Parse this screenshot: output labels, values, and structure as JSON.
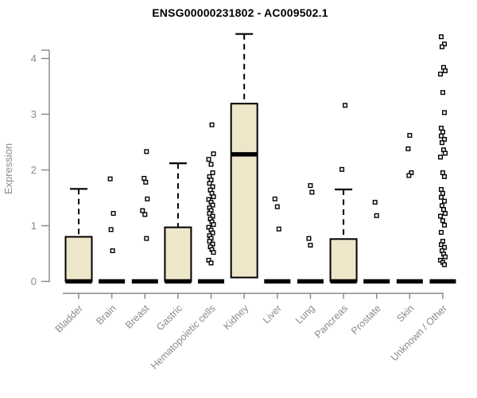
{
  "chart_data": {
    "type": "boxplot",
    "title": "ENSG00000231802 - AC009502.1",
    "ylabel": "Expression",
    "xlabel": "",
    "ylim": [
      0,
      4.45
    ],
    "yticks": [
      0,
      1,
      2,
      3,
      4
    ],
    "grid": false,
    "legend": "none",
    "categories": [
      "Bladder",
      "Brain",
      "Breast",
      "Gastric",
      "Hematopoietic cells",
      "Kidney",
      "Liver",
      "Lung",
      "Pancreas",
      "Prostate",
      "Skin",
      "Unknown / Other"
    ],
    "colors": {
      "box_fill": "#ede6c9",
      "box_border": "#000000",
      "median": "#000000",
      "point_fill": "#ffffff",
      "point_border": "#000000",
      "axis": "#878787",
      "text": "#8a8a8a",
      "title": "#000000"
    },
    "boxes": [
      {
        "category": "Bladder",
        "q1": 0,
        "median": 0,
        "q3": 0.8,
        "whisker_low": 0,
        "whisker_high": 1.66,
        "points": []
      },
      {
        "category": "Brain",
        "q1": 0,
        "median": 0,
        "q3": 0,
        "whisker_low": 0,
        "whisker_high": 0,
        "points": [
          1.84,
          1.22,
          0.93,
          0.55
        ]
      },
      {
        "category": "Breast",
        "q1": 0,
        "median": 0,
        "q3": 0,
        "whisker_low": 0,
        "whisker_high": 0,
        "points": [
          2.33,
          1.85,
          1.78,
          1.48,
          1.27,
          1.2,
          0.77
        ]
      },
      {
        "category": "Gastric",
        "q1": 0,
        "median": 0,
        "q3": 0.97,
        "whisker_low": 0,
        "whisker_high": 2.12,
        "points": []
      },
      {
        "category": "Hematopoietic cells",
        "q1": 0,
        "median": 0,
        "q3": 0,
        "whisker_low": 0,
        "whisker_high": 0,
        "points": [
          2.81,
          2.29,
          2.19,
          2.1,
          1.95,
          1.88,
          1.82,
          1.76,
          1.7,
          1.64,
          1.58,
          1.52,
          1.47,
          1.42,
          1.37,
          1.32,
          1.27,
          1.22,
          1.17,
          1.12,
          1.07,
          1.02,
          0.97,
          0.92,
          0.87,
          0.82,
          0.77,
          0.72,
          0.67,
          0.62,
          0.57,
          0.52,
          0.38,
          0.33
        ]
      },
      {
        "category": "Kidney",
        "q1": 0.07,
        "median": 2.28,
        "q3": 3.19,
        "whisker_low": 0,
        "whisker_high": 4.44,
        "points": []
      },
      {
        "category": "Liver",
        "q1": 0,
        "median": 0,
        "q3": 0,
        "whisker_low": 0,
        "whisker_high": 0,
        "points": [
          1.48,
          1.34,
          0.94
        ]
      },
      {
        "category": "Lung",
        "q1": 0,
        "median": 0,
        "q3": 0,
        "whisker_low": 0,
        "whisker_high": 0,
        "points": [
          1.72,
          1.6,
          0.77,
          0.65
        ]
      },
      {
        "category": "Pancreas",
        "q1": 0,
        "median": 0,
        "q3": 0.76,
        "whisker_low": 0,
        "whisker_high": 1.65,
        "points": [
          3.16,
          2.01
        ]
      },
      {
        "category": "Prostate",
        "q1": 0,
        "median": 0,
        "q3": 0,
        "whisker_low": 0,
        "whisker_high": 0,
        "points": [
          1.42,
          1.18
        ]
      },
      {
        "category": "Skin",
        "q1": 0,
        "median": 0,
        "q3": 0,
        "whisker_low": 0,
        "whisker_high": 0,
        "points": [
          2.62,
          2.38,
          1.95,
          1.9
        ]
      },
      {
        "category": "Unknown / Other",
        "q1": 0,
        "median": 0,
        "q3": 0,
        "whisker_low": 0,
        "whisker_high": 0,
        "points": [
          4.39,
          4.26,
          4.21,
          3.84,
          3.78,
          3.72,
          3.39,
          3.03,
          2.75,
          2.68,
          2.61,
          2.55,
          2.49,
          2.36,
          2.3,
          2.23,
          1.95,
          1.88,
          1.65,
          1.58,
          1.51,
          1.44,
          1.36,
          1.29,
          1.22,
          1.17,
          1.09,
          1.01,
          0.88,
          0.72,
          0.66,
          0.61,
          0.55,
          0.49,
          0.44,
          0.38,
          0.34,
          0.3
        ]
      }
    ]
  }
}
